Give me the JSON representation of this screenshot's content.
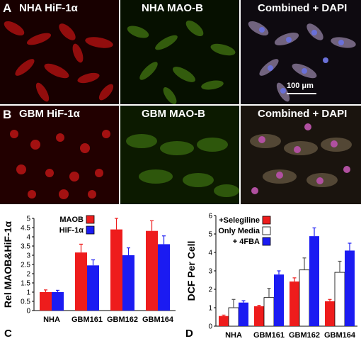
{
  "panels": {
    "a_letter": "A",
    "b_letter": "B",
    "c_letter": "C",
    "d_letter": "D",
    "row_a": [
      "NHA HiF-1α",
      "NHA MAO-B",
      "Combined + DAPI"
    ],
    "row_b": [
      "GBM HiF-1α",
      "GBM MAO-B",
      "Combined + DAPI"
    ],
    "scale_bar": "100 μm"
  },
  "colors": {
    "red": "#ee1c1c",
    "blue": "#1b1bf2",
    "white_bar": "#ffffff"
  },
  "chart_data": [
    {
      "type": "bar",
      "ylabel": "Rel MAOB&HiF-1α",
      "xlabel": "",
      "categories": [
        "NHA",
        "GBM161",
        "GBM162",
        "GBM164"
      ],
      "ylim": [
        0,
        5
      ],
      "yticks": [
        "0",
        "0.5",
        "1",
        "1.5",
        "2",
        "2.5",
        "3",
        "3.5",
        "4",
        "4.5",
        "5"
      ],
      "legend_position": "top-left",
      "series": [
        {
          "name": "MAOB",
          "color": "#ee1c1c",
          "values": [
            1.0,
            3.15,
            4.4,
            4.32
          ],
          "errors": [
            0.12,
            0.45,
            0.6,
            0.55
          ]
        },
        {
          "name": "HiF-1α",
          "color": "#1b1bf2",
          "values": [
            1.0,
            2.45,
            3.0,
            3.6
          ],
          "errors": [
            0.1,
            0.3,
            0.4,
            0.45
          ]
        }
      ]
    },
    {
      "type": "bar",
      "ylabel": "DCF Per Cell",
      "xlabel": "",
      "categories": [
        "NHA",
        "GBM161",
        "GBM162",
        "GBM164"
      ],
      "ylim": [
        0,
        6
      ],
      "yticks": [
        "0",
        "1",
        "2",
        "3",
        "4",
        "5",
        "6"
      ],
      "legend_position": "top-left",
      "series": [
        {
          "name": "+Selegiline",
          "color": "#ee1c1c",
          "values": [
            0.55,
            1.08,
            2.42,
            1.35
          ],
          "errors": [
            0.05,
            0.05,
            0.2,
            0.1
          ]
        },
        {
          "name": "Only Media",
          "color": "#ffffff",
          "values": [
            1.0,
            1.55,
            3.05,
            2.92
          ],
          "errors": [
            0.45,
            0.5,
            0.65,
            0.6
          ]
        },
        {
          "name": "+ 4FBA",
          "color": "#1b1bf2",
          "values": [
            1.28,
            2.8,
            4.88,
            4.1
          ],
          "errors": [
            0.1,
            0.2,
            0.45,
            0.4
          ]
        }
      ]
    }
  ]
}
